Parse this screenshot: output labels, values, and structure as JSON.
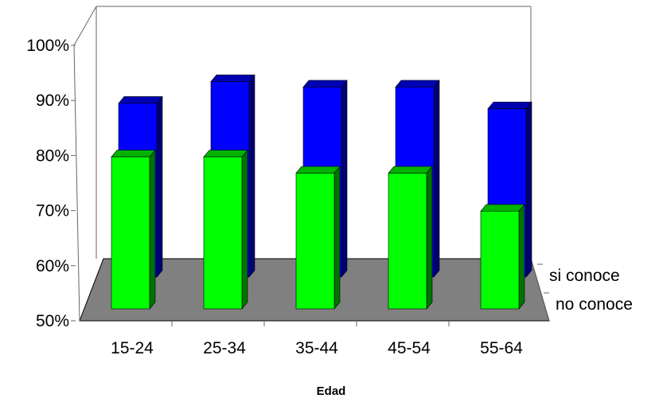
{
  "chart_data": {
    "type": "bar",
    "title": "",
    "xlabel": "Edad",
    "ylabel": "",
    "ylim": [
      50,
      100
    ],
    "yticks": [
      "50%",
      "60%",
      "70%",
      "80%",
      "90%",
      "100%"
    ],
    "categories": [
      "15-24",
      "25-34",
      "35-44",
      "45-54",
      "55-64"
    ],
    "series": [
      {
        "name": "si conoce",
        "color": "#0000ff",
        "values": [
          82,
          86,
          85,
          85,
          81
        ]
      },
      {
        "name": "no conoce",
        "color": "#00ff00",
        "values": [
          78,
          78,
          75,
          75,
          68
        ]
      }
    ],
    "floor_color": "#808080",
    "grid": false,
    "legend": "depth axis labels on right"
  }
}
